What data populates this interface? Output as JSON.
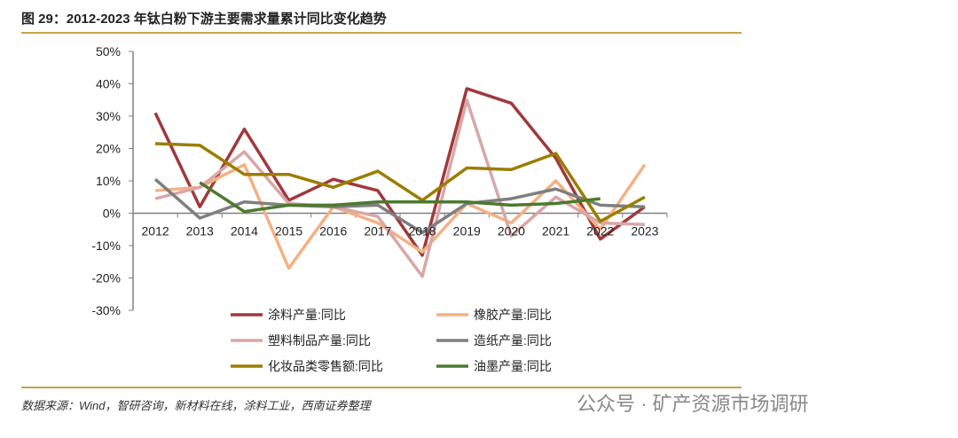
{
  "title": "图 29：2012-2023 年钛白粉下游主要需求量累计同比变化趋势",
  "source": "数据来源：Wind，智研咨询，新材料在线，涂料工业，西南证券整理",
  "watermark": "公众号 · 矿产资源市场调研",
  "chart_data": {
    "type": "line",
    "categories": [
      "2012",
      "2013",
      "2014",
      "2015",
      "2016",
      "2017",
      "2018",
      "2019",
      "2020",
      "2021",
      "2022",
      "2023"
    ],
    "ylim": [
      -30,
      50
    ],
    "yticks": [
      "-30%",
      "-20%",
      "-10%",
      "0%",
      "10%",
      "20%",
      "30%",
      "40%",
      "50%"
    ],
    "legend": "bottom",
    "series": [
      {
        "name": "涂料产量:同比",
        "color": "#a0393c",
        "values": [
          31,
          2,
          26,
          4,
          10.5,
          7,
          -13,
          38.5,
          34,
          17,
          -8,
          2
        ]
      },
      {
        "name": "橡胶产量:同比",
        "color": "#f4b183",
        "values": [
          7,
          8,
          15,
          -17,
          2,
          -3,
          -12,
          3,
          -3,
          10,
          -5,
          15
        ]
      },
      {
        "name": "塑料制品产量:同比",
        "color": "#d9a7a7",
        "values": [
          4.5,
          8,
          19,
          3,
          2,
          -1,
          -19.5,
          35,
          -7,
          5,
          -3,
          -3.5
        ]
      },
      {
        "name": "造纸产量:同比",
        "color": "#7f7f7f",
        "values": [
          10.5,
          -1.5,
          3.5,
          2.5,
          2,
          2.5,
          -6,
          3,
          4.5,
          7.5,
          2.5,
          2
        ]
      },
      {
        "name": "化妆品类零售额:同比",
        "color": "#9c7d00",
        "values": [
          21.5,
          21,
          12,
          12,
          8,
          13,
          4,
          14,
          13.5,
          18.5,
          -2.5,
          5
        ]
      },
      {
        "name": "油墨产量:同比",
        "color": "#4b7a2e",
        "values": [
          null,
          9.5,
          0.5,
          2.5,
          2.5,
          3.5,
          3.5,
          3.5,
          2.5,
          3,
          4.5,
          null
        ]
      }
    ]
  }
}
